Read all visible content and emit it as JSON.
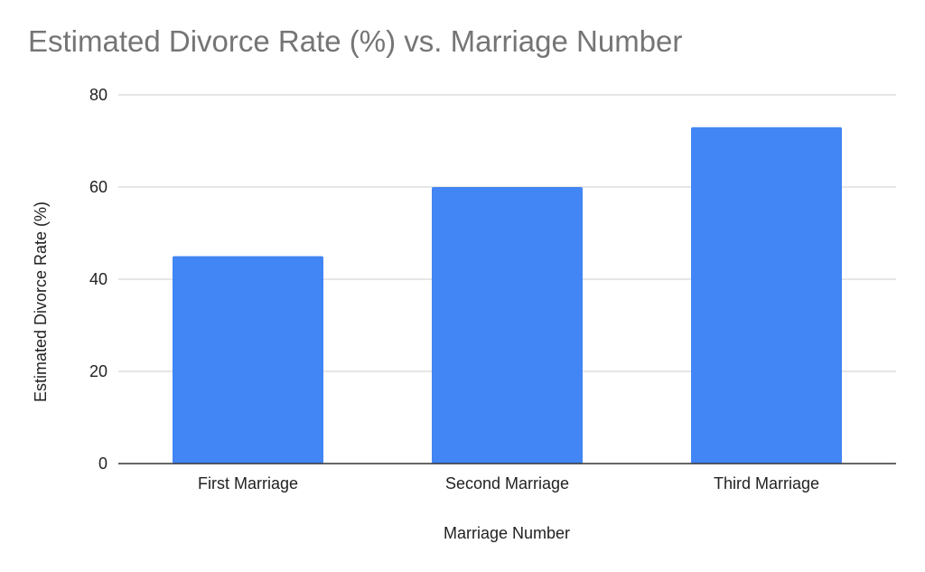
{
  "chart_data": {
    "type": "bar",
    "title": "Estimated Divorce Rate (%) vs. Marriage Number",
    "xlabel": "Marriage Number",
    "ylabel": "Estimated Divorce Rate (%)",
    "categories": [
      "First Marriage",
      "Second Marriage",
      "Third Marriage"
    ],
    "values": [
      45,
      60,
      73
    ],
    "ylim": [
      0,
      80
    ],
    "yticks": [
      0,
      20,
      40,
      60,
      80
    ],
    "grid": true,
    "bar_color": "#4285f4",
    "grid_color": "#cccccc",
    "axis_color": "#333333",
    "title_color": "#757575"
  }
}
